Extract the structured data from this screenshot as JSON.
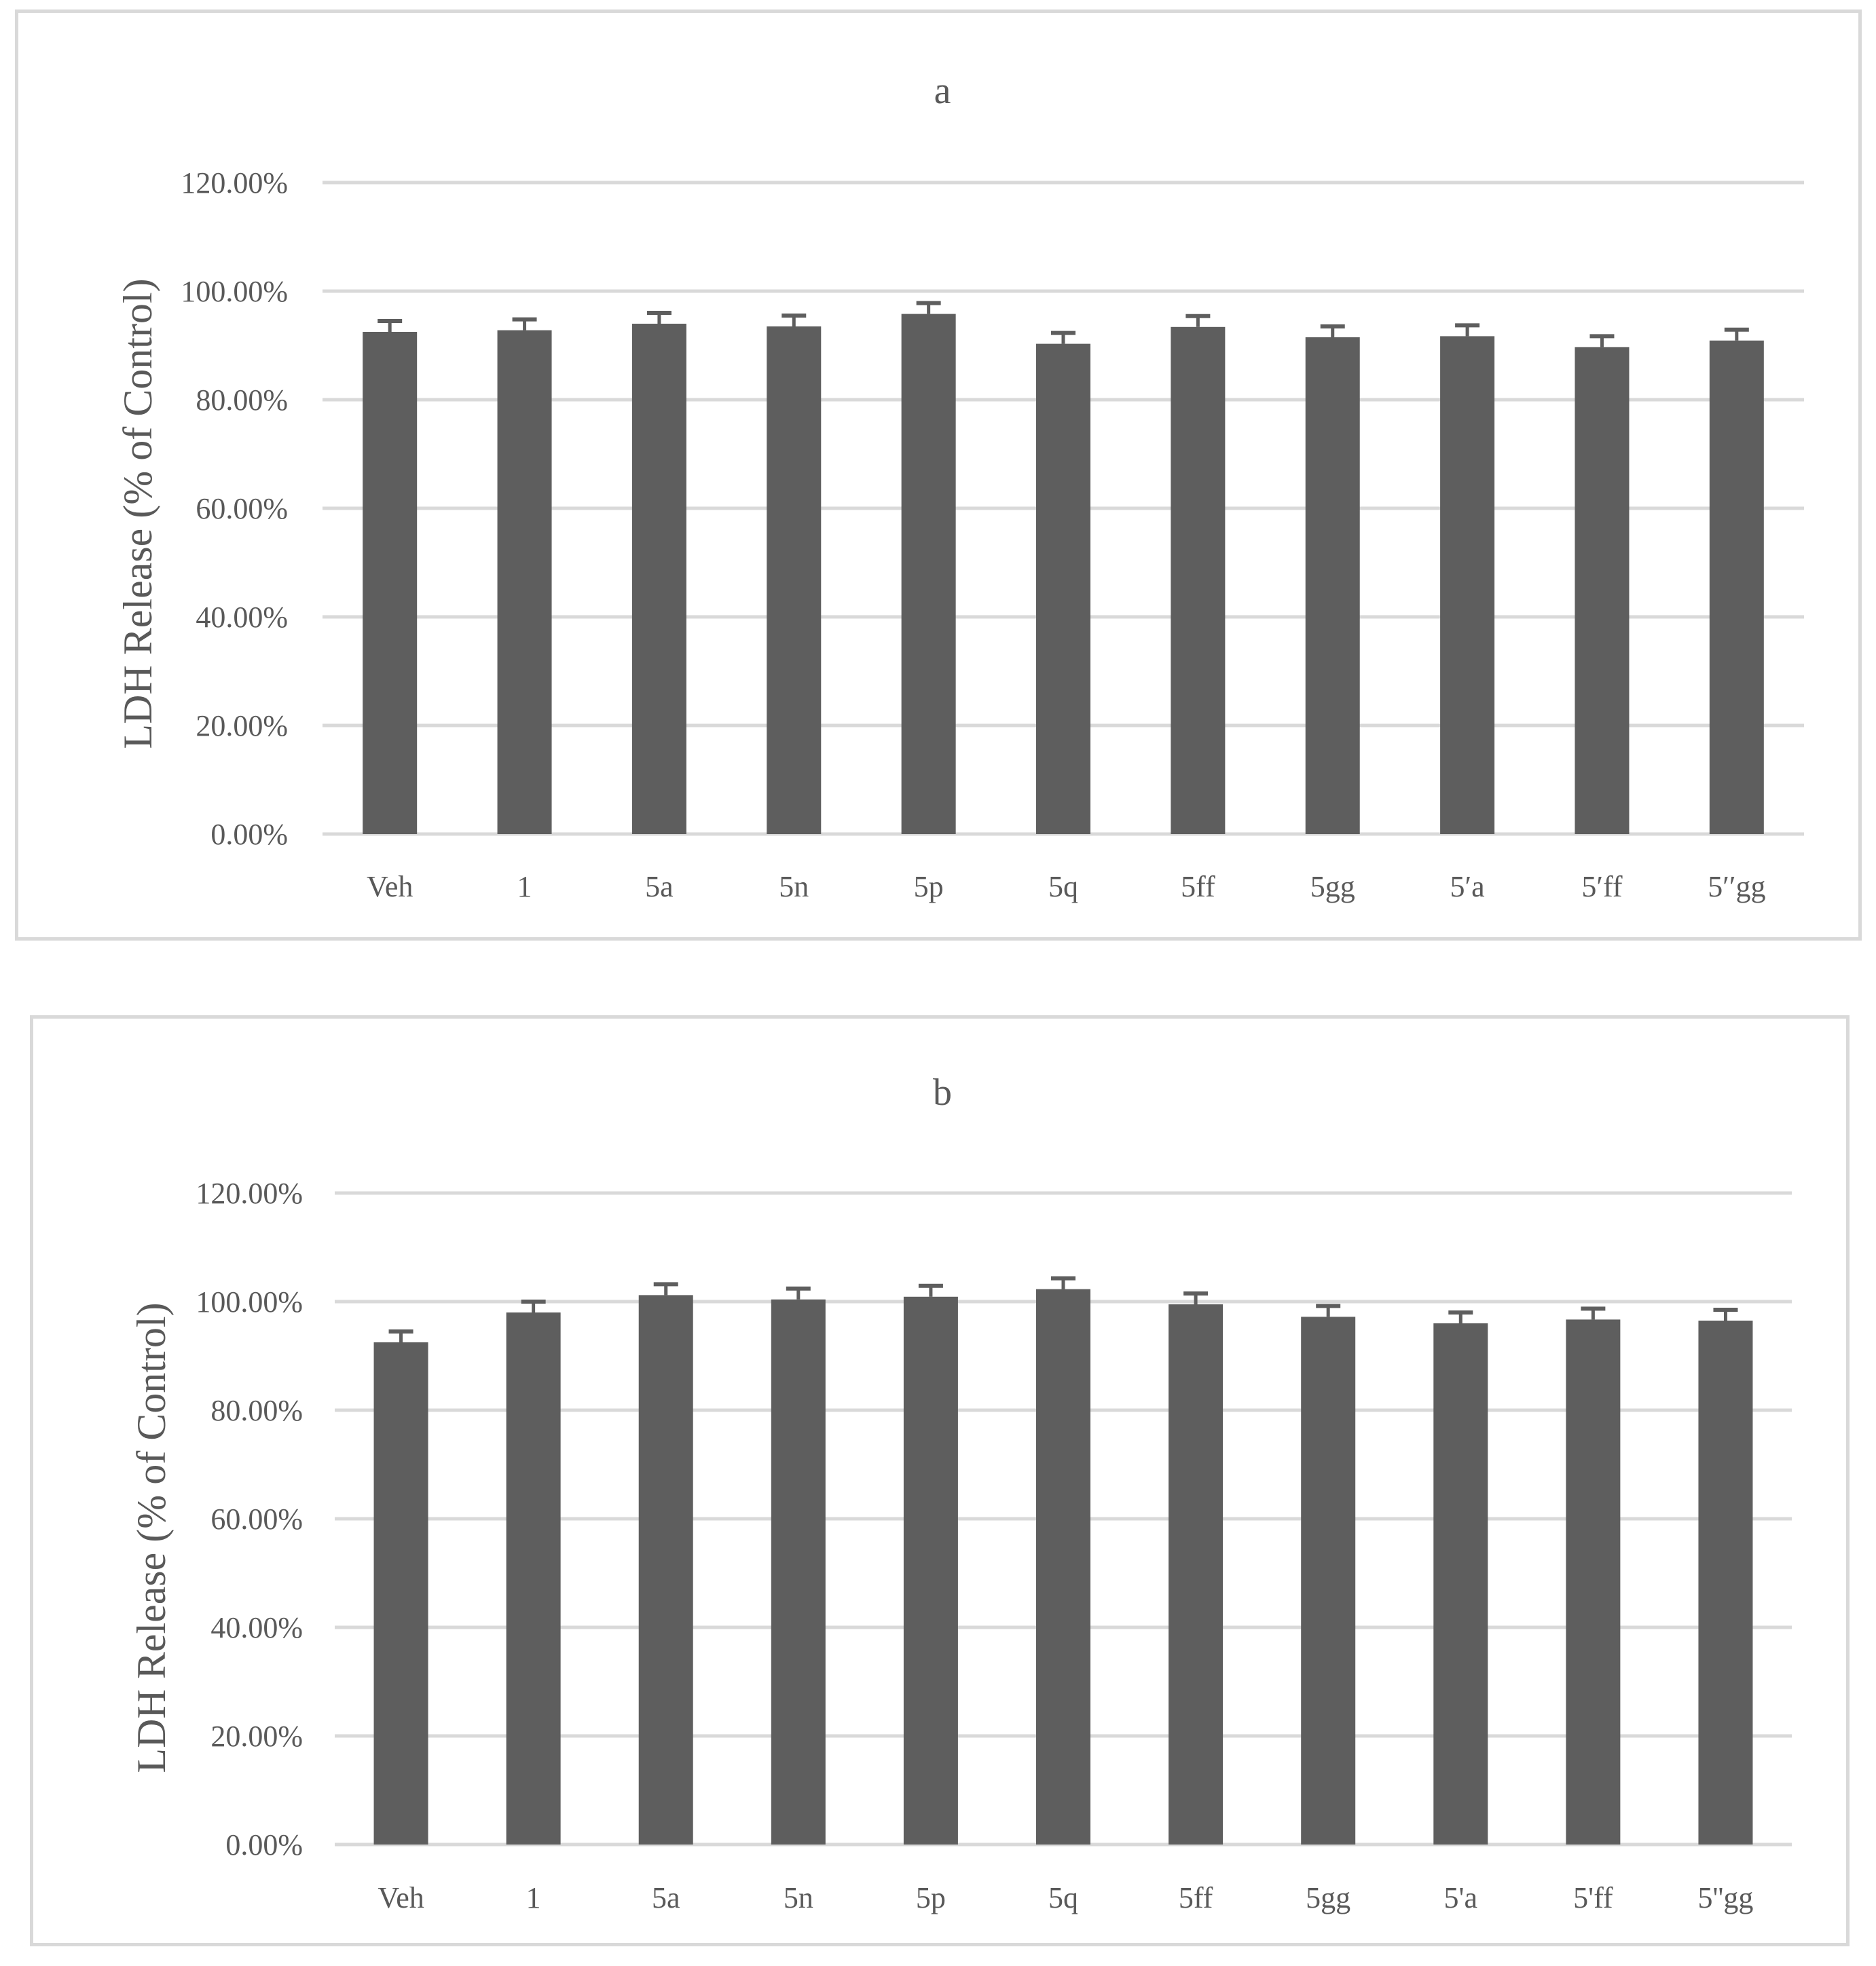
{
  "colors": {
    "bar": "#5e5e5e",
    "grid": "#d9d9d9",
    "text": "#595959"
  },
  "chart_data": [
    {
      "type": "bar",
      "title": "a",
      "xlabel": "",
      "ylabel": "LDH Release (% of Control)",
      "ylim": [
        0,
        120
      ],
      "yticks": [
        "0.00%",
        "20.00%",
        "40.00%",
        "60.00%",
        "80.00%",
        "100.00%",
        "120.00%"
      ],
      "categories": [
        "Veh",
        "1",
        "5a",
        "5n",
        "5p",
        "5q",
        "5ff",
        "5gg",
        "5′a",
        "5′ff",
        "5′′gg"
      ],
      "values": [
        92.5,
        92.8,
        94.0,
        93.5,
        95.8,
        90.3,
        93.4,
        91.5,
        91.7,
        89.7,
        90.9
      ],
      "errors": [
        2.0,
        2.0,
        2.0,
        2.0,
        2.0,
        2.0,
        2.0,
        2.0,
        2.0,
        2.0,
        2.0
      ],
      "grid": true,
      "legend": "none"
    },
    {
      "type": "bar",
      "title": "b",
      "xlabel": "",
      "ylabel": "LDH Release (% of Control)",
      "ylim": [
        0,
        120
      ],
      "yticks": [
        "0.00%",
        "20.00%",
        "40.00%",
        "60.00%",
        "80.00%",
        "100.00%",
        "120.00%"
      ],
      "categories": [
        "Veh",
        "1",
        "5a",
        "5n",
        "5p",
        "5q",
        "5ff",
        "5gg",
        "5'a",
        "5'ff",
        "5''gg"
      ],
      "values": [
        92.5,
        98.0,
        101.2,
        100.4,
        100.9,
        102.3,
        99.5,
        97.2,
        96.0,
        96.7,
        96.5
      ],
      "errors": [
        2.0,
        2.0,
        2.0,
        2.0,
        2.0,
        2.0,
        2.0,
        2.0,
        2.0,
        2.0,
        2.0
      ],
      "grid": true,
      "legend": "none"
    }
  ]
}
